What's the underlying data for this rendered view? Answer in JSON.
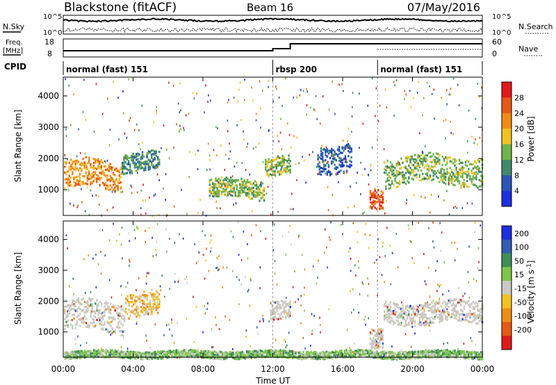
{
  "header": {
    "station": "Blackstone (fitACF)",
    "beam": "Beam 16",
    "date": "07/May/2016"
  },
  "noise_panel": {
    "left_label": "N.Sky",
    "right_label": "N.Search",
    "left_ticks": [
      "10^5",
      "10^0"
    ],
    "right_ticks": [
      "10^5",
      "10^0"
    ]
  },
  "freq_panel": {
    "left_label_1": "Freq.",
    "left_label_2": "[MHz]",
    "right_label": "Nave",
    "left_ticks": [
      "18",
      "8"
    ],
    "right_ticks": [
      "60",
      "0"
    ]
  },
  "cpid": {
    "label": "CPID",
    "segments": [
      {
        "name": "normal (fast) 151",
        "start": 0,
        "end": 12
      },
      {
        "name": "rbsp 200",
        "start": 12,
        "end": 18
      },
      {
        "name": "normal (fast) 151",
        "start": 18,
        "end": 24
      }
    ]
  },
  "chart_data": [
    {
      "type": "heatmap",
      "quantity": "Power",
      "ylabel": "Slant Range [km]",
      "ylim": [
        180,
        4600
      ],
      "yticks": [
        1000,
        2000,
        3000,
        4000
      ],
      "xlim": [
        0,
        24
      ],
      "colorbar_label": "Power [dB]",
      "colorbar_ticks": [
        "4",
        "8",
        "12",
        "16",
        "20",
        "24",
        "28"
      ],
      "colors": [
        "#1d2fe0",
        "#2a56b4",
        "#3f8a6a",
        "#6fb34a",
        "#f2c224",
        "#f08c14",
        "#e65a16",
        "#e31a1c"
      ],
      "echo_regions": [
        {
          "t0": 0.0,
          "t1": 3.3,
          "r0": 1050,
          "r1": 1950,
          "level": 5
        },
        {
          "t0": 3.3,
          "t1": 5.5,
          "r0": 1600,
          "r1": 2200,
          "level": 2
        },
        {
          "t0": 8.3,
          "t1": 11.5,
          "r0": 750,
          "r1": 1350,
          "level": 3
        },
        {
          "t0": 11.5,
          "t1": 13.0,
          "r0": 1500,
          "r1": 2100,
          "level": 3
        },
        {
          "t0": 14.5,
          "t1": 16.5,
          "r0": 1600,
          "r1": 2500,
          "level": 1
        },
        {
          "t0": 17.5,
          "t1": 18.3,
          "r0": 400,
          "r1": 1050,
          "level": 6
        },
        {
          "t0": 18.3,
          "t1": 24.0,
          "r0": 1200,
          "r1": 2100,
          "level": 3
        }
      ]
    },
    {
      "type": "heatmap",
      "quantity": "Velocity",
      "ylabel": "Slant Range [km]",
      "ylim": [
        180,
        4600
      ],
      "yticks": [
        1000,
        2000,
        3000,
        4000
      ],
      "xlim": [
        0,
        24
      ],
      "colorbar_label": "Velocity [m s",
      "colorbar_unit_exp": "-1",
      "colorbar_label_end": "]",
      "colorbar_ticks": [
        "200",
        "100",
        "50",
        "15",
        "-15",
        "-50",
        "-100",
        "-200"
      ],
      "colors": [
        "#1d2fe0",
        "#2f5db0",
        "#3f8f58",
        "#7ec64a",
        "#cbc9c1",
        "#f2c224",
        "#f08c14",
        "#e65a16",
        "#e31a1c"
      ],
      "echo_regions": [
        {
          "t0": 0.0,
          "t1": 3.5,
          "r0": 1050,
          "r1": 2000,
          "level": 4
        },
        {
          "t0": 3.5,
          "t1": 5.5,
          "r0": 1500,
          "r1": 2300,
          "level": 5
        },
        {
          "t0": 11.8,
          "t1": 13.0,
          "r0": 1500,
          "r1": 2100,
          "level": 4
        },
        {
          "t0": 17.5,
          "t1": 18.3,
          "r0": 400,
          "r1": 1050,
          "level": 4
        },
        {
          "t0": 18.3,
          "t1": 24.0,
          "r0": 1300,
          "r1": 2000,
          "level": 4
        },
        {
          "t0": 0.0,
          "t1": 24.0,
          "r0": 180,
          "r1": 420,
          "level": 3
        }
      ]
    }
  ],
  "x_axis": {
    "ticks": [
      "00:00",
      "04:00",
      "08:00",
      "12:00",
      "16:00",
      "20:00",
      "00:00"
    ],
    "label": "Time UT"
  }
}
